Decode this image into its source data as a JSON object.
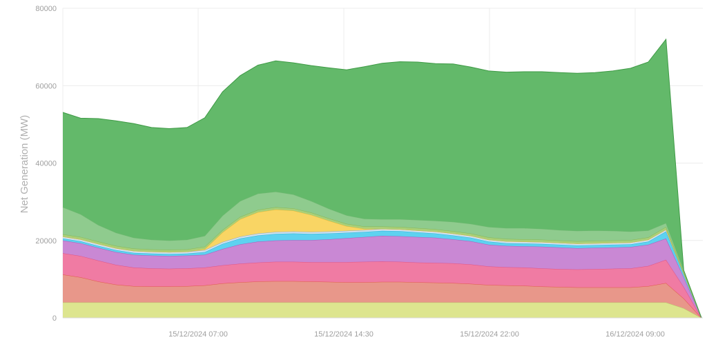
{
  "chart_data": {
    "type": "area",
    "stacked": true,
    "ylabel": "Net Generation (MW)",
    "ylim": [
      0,
      80000
    ],
    "y_ticks": [
      0,
      20000,
      40000,
      60000,
      80000
    ],
    "x_tick_labels": [
      "15/12/2024 07:00",
      "15/12/2024 14:30",
      "15/12/2024 22:00",
      "16/12/2024 09:00"
    ],
    "grid": true,
    "x": [
      0,
      1,
      2,
      3,
      4,
      5,
      6,
      7,
      8,
      9,
      10,
      11,
      12,
      13,
      14,
      15,
      16,
      17,
      18,
      19,
      20,
      21,
      22,
      23,
      24,
      25,
      26,
      27,
      28,
      29,
      30,
      31,
      32,
      33,
      34,
      35,
      36
    ],
    "series": [
      {
        "color": "#dde58f",
        "edge": "#b8c76a",
        "values": [
          4000,
          4000,
          4000,
          4000,
          4000,
          4000,
          4000,
          4000,
          4000,
          4000,
          4000,
          4000,
          4000,
          4000,
          4000,
          4000,
          4000,
          4000,
          4000,
          4000,
          4000,
          4000,
          4000,
          4000,
          4000,
          4000,
          4000,
          4000,
          4000,
          4000,
          4000,
          4000,
          4000,
          4000,
          4000,
          2500,
          0
        ]
      },
      {
        "color": "#e8978a",
        "edge": "#e0574a",
        "values": [
          7200,
          6500,
          5400,
          4600,
          4200,
          4100,
          4100,
          4200,
          4400,
          4900,
          5200,
          5400,
          5500,
          5500,
          5400,
          5300,
          5200,
          5200,
          5300,
          5300,
          5200,
          5100,
          5000,
          4800,
          4500,
          4400,
          4300,
          4100,
          4000,
          3900,
          3900,
          3900,
          3900,
          4200,
          5000,
          2500,
          0
        ]
      },
      {
        "color": "#f07ba3",
        "edge": "#e05283",
        "values": [
          5500,
          5500,
          5400,
          5100,
          4800,
          4700,
          4600,
          4600,
          4600,
          4700,
          4800,
          4900,
          5000,
          5000,
          5000,
          5100,
          5200,
          5300,
          5300,
          5200,
          5100,
          5100,
          5100,
          5000,
          4800,
          4700,
          4700,
          4700,
          4600,
          4600,
          4700,
          4800,
          4900,
          5200,
          6000,
          3000,
          0
        ]
      },
      {
        "color": "#c988d4",
        "edge": "#a65cb8",
        "values": [
          3300,
          3300,
          3300,
          3300,
          3300,
          3300,
          3300,
          3300,
          3300,
          4200,
          5000,
          5400,
          5500,
          5600,
          5700,
          5900,
          6200,
          6400,
          6600,
          6600,
          6600,
          6500,
          6200,
          6000,
          5600,
          5500,
          5500,
          5600,
          5600,
          5500,
          5500,
          5500,
          5500,
          5500,
          5500,
          2500,
          0
        ]
      },
      {
        "color": "#5ed2f0",
        "edge": "#2db3d8",
        "values": [
          500,
          500,
          500,
          500,
          500,
          500,
          500,
          500,
          700,
          1300,
          1500,
          1600,
          1700,
          1700,
          1600,
          1500,
          1400,
          1300,
          1300,
          1300,
          1200,
          1100,
          1000,
          900,
          800,
          700,
          700,
          700,
          700,
          700,
          700,
          700,
          700,
          800,
          1800,
          800,
          0
        ]
      },
      {
        "color": "#cfe0ee",
        "edge": "#8aa9c4",
        "values": [
          500,
          500,
          500,
          500,
          500,
          500,
          500,
          500,
          500,
          500,
          500,
          500,
          500,
          500,
          500,
          500,
          500,
          500,
          500,
          500,
          500,
          500,
          500,
          500,
          500,
          500,
          500,
          500,
          500,
          500,
          500,
          500,
          500,
          500,
          500,
          200,
          0
        ]
      },
      {
        "color": "#f9d564",
        "edge": "#e7b833",
        "values": [
          0,
          0,
          0,
          0,
          0,
          0,
          0,
          0,
          300,
          2500,
          4500,
          5500,
          5800,
          5400,
          4400,
          2800,
          1200,
          300,
          0,
          0,
          0,
          0,
          0,
          0,
          0,
          0,
          0,
          0,
          0,
          0,
          0,
          0,
          0,
          0,
          0,
          0,
          0
        ]
      },
      {
        "color": "#a9d07a",
        "edge": "#86b552",
        "values": [
          600,
          600,
          600,
          600,
          600,
          600,
          600,
          600,
          600,
          600,
          600,
          600,
          600,
          600,
          600,
          600,
          600,
          600,
          600,
          600,
          600,
          600,
          600,
          600,
          600,
          600,
          600,
          600,
          600,
          600,
          600,
          600,
          600,
          600,
          700,
          300,
          0
        ]
      },
      {
        "color": "#8fcb8e",
        "edge": "#72b872",
        "values": [
          7000,
          5900,
          4300,
          3400,
          2800,
          2500,
          2400,
          2500,
          2800,
          3700,
          4100,
          4200,
          4000,
          3600,
          3000,
          2500,
          2200,
          2000,
          1900,
          2000,
          2100,
          2200,
          2400,
          2500,
          2700,
          2800,
          2900,
          2800,
          2700,
          2700,
          2700,
          2500,
          2200,
          1800,
          1000,
          500,
          0
        ]
      },
      {
        "color": "#63b96a",
        "edge": "#3e9a45",
        "values": [
          24500,
          24800,
          27500,
          28900,
          29500,
          29000,
          28900,
          29000,
          30500,
          32000,
          32400,
          33200,
          33800,
          34000,
          35000,
          36400,
          37600,
          39300,
          40300,
          40700,
          40800,
          40600,
          40800,
          40500,
          40300,
          40300,
          40400,
          40600,
          40700,
          40700,
          40800,
          41300,
          42200,
          43500,
          47500,
          0,
          0
        ]
      }
    ]
  }
}
